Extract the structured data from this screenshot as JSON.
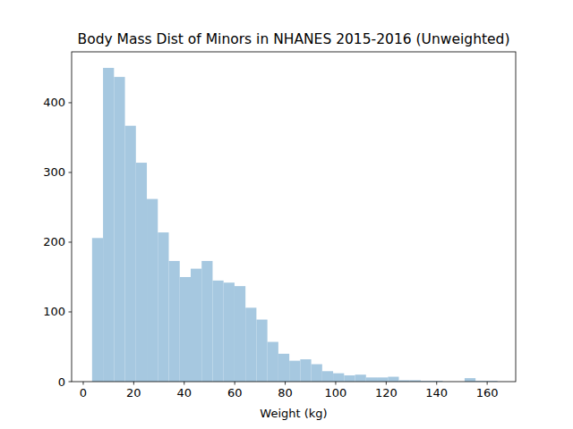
{
  "chart_data": {
    "type": "histogram",
    "title": "Body Mass Dist of Minors in NHANES 2015-2016 (Unweighted)",
    "x_label": "Weight (kg)",
    "color": "#a6c8e0",
    "grid": false,
    "bins": [
      3.5,
      7.84,
      12.18,
      16.52,
      20.86,
      25.2,
      29.54,
      33.88,
      38.22,
      42.56,
      46.9,
      51.24,
      55.58,
      59.92,
      64.26,
      68.6,
      72.94,
      77.28,
      81.62,
      85.96,
      90.3,
      94.64,
      98.98,
      103.32,
      107.66,
      112,
      116.34,
      120.68,
      125.02,
      129.36,
      133.7,
      138.04,
      142.38,
      146.72,
      151.06,
      155.4,
      159.74,
      164.08
    ],
    "values": [
      206,
      450,
      437,
      367,
      314,
      262,
      214,
      173,
      150,
      162,
      173,
      145,
      142,
      137,
      106,
      89,
      57,
      40,
      30,
      32,
      25,
      15,
      12,
      9,
      10,
      6,
      6,
      7,
      2,
      2,
      1,
      1,
      0,
      0,
      5,
      1,
      1
    ],
    "xlim": [
      -4.6,
      171.3
    ],
    "ylim": [
      0,
      473
    ],
    "xticks": [
      0,
      20,
      40,
      60,
      80,
      100,
      120,
      140,
      160
    ],
    "yticks": [
      0,
      100,
      200,
      300,
      400
    ]
  }
}
